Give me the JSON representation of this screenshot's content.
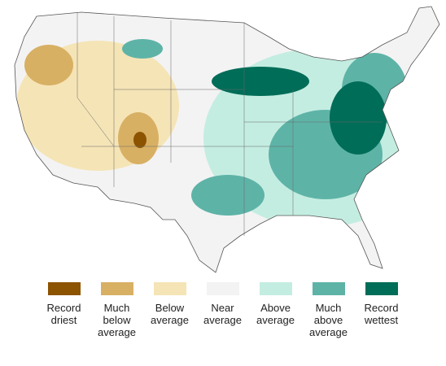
{
  "legend": {
    "items": [
      {
        "label": "Record driest",
        "color": "#8c5300"
      },
      {
        "label": "Much below average",
        "color": "#d8b064"
      },
      {
        "label": "Below average",
        "color": "#f5e4b6"
      },
      {
        "label": "Near average",
        "color": "#f3f3f3"
      },
      {
        "label": "Above average",
        "color": "#c4ede1"
      },
      {
        "label": "Much above average",
        "color": "#5eb3a7"
      },
      {
        "label": "Record wettest",
        "color": "#006d58"
      }
    ]
  }
}
